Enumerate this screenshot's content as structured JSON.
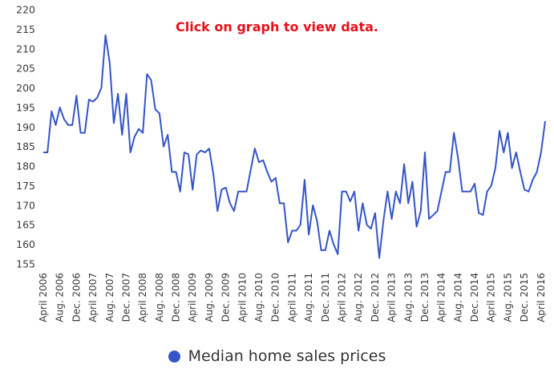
{
  "note": "Click on graph to view data.",
  "colors": {
    "series": "#3554c9",
    "note": "#e8101a"
  },
  "chart_data": {
    "type": "line",
    "title": "",
    "xlabel": "",
    "ylabel": "",
    "ylim": [
      155,
      220
    ],
    "yticks": [
      155,
      160,
      165,
      170,
      175,
      180,
      185,
      190,
      195,
      200,
      205,
      210,
      215,
      220
    ],
    "grid": false,
    "legend_position": "bottom",
    "x_start": "April 2006",
    "x_tick_labels": [
      "April 2006",
      "Aug. 2006",
      "Dec. 2006",
      "April 2007",
      "Aug. 2007",
      "Dec. 2007",
      "April 2008",
      "Aug. 2008",
      "Dec. 2008",
      "April 2009",
      "Aug. 2009",
      "Dec. 2009",
      "April 2010",
      "Aug. 2010",
      "Dec. 2010",
      "April 2011",
      "Aug. 2011",
      "Dec. 2011",
      "April 2012",
      "Aug. 2012",
      "Dec. 2012",
      "April 2013",
      "Aug. 2013",
      "Dec. 2013",
      "April 2014",
      "Aug. 2014",
      "Dec. 2014",
      "April 2015",
      "Aug. 2015",
      "Dec. 2015",
      "April 2016"
    ],
    "series": [
      {
        "name": "Median home sales prices",
        "values": [
          183.5,
          183.5,
          194,
          190.5,
          195,
          192,
          190.5,
          190.5,
          198,
          188.5,
          188.5,
          197,
          196.5,
          197.5,
          200,
          213.5,
          206.5,
          191,
          198.5,
          188,
          198.5,
          183.5,
          187.5,
          189.5,
          188.5,
          203.5,
          202,
          194.5,
          193.5,
          185,
          188,
          178.5,
          178.5,
          173.5,
          183.5,
          183,
          174,
          183,
          184,
          183.5,
          184.5,
          178,
          168.5,
          174,
          174.5,
          170.5,
          168.5,
          173.5,
          173.5,
          173.5,
          179,
          184.5,
          181,
          181.5,
          178.5,
          176,
          177,
          170.5,
          170.5,
          160.5,
          163.5,
          163.5,
          165,
          176.5,
          162.5,
          170,
          166,
          158.5,
          158.5,
          163.5,
          160,
          157.5,
          173.5,
          173.5,
          171,
          173.5,
          163.5,
          170.5,
          165,
          164,
          168,
          156.5,
          166,
          173.5,
          166.5,
          173.5,
          170.5,
          180.5,
          170.5,
          176,
          164.5,
          168.5,
          183.5,
          166.5,
          167.5,
          168.5,
          173.5,
          178.5,
          178.5,
          188.5,
          182,
          173.5,
          173.5,
          173.5,
          175.5,
          168,
          167.5,
          173.5,
          175,
          179.5,
          189,
          183.5,
          188.5,
          179.5,
          183.5,
          178.5,
          174,
          173.5,
          176.5,
          178.5,
          183.5,
          191.5
        ]
      }
    ]
  }
}
